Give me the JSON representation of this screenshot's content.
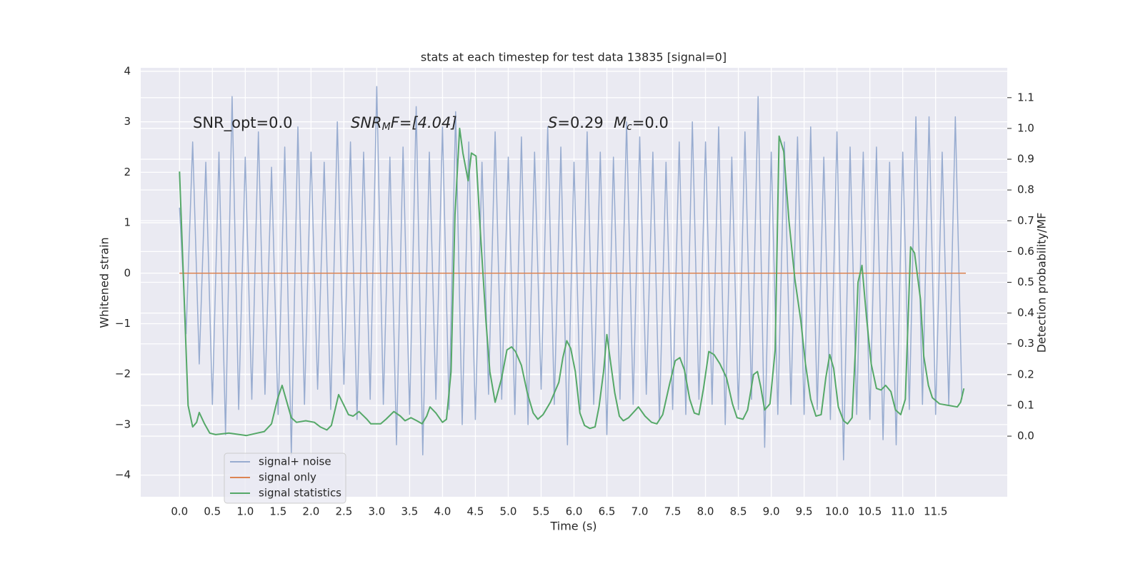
{
  "chart_data": {
    "type": "line",
    "title": "stats at each timestep for test data 13835 [signal=0]",
    "xlabel": "Time (s)",
    "ylabel": "Whitened strain",
    "y2label": "Detection probability/MF",
    "xlim": [
      -0.59,
      12.59
    ],
    "ylim": [
      -4.43,
      4.07
    ],
    "y2lim": [
      -0.197,
      1.197
    ],
    "xticks": [
      {
        "value": 0,
        "label": "0.0"
      },
      0.5,
      {
        "value": 1,
        "label": "1.0"
      },
      1.5,
      {
        "value": 2,
        "label": "2.0"
      },
      2.5,
      {
        "value": 3,
        "label": "3.0"
      },
      3.5,
      {
        "value": 4,
        "label": "4.0"
      },
      4.5,
      {
        "value": 5,
        "label": "5.0"
      },
      5.5,
      {
        "value": 6,
        "label": "6.0"
      },
      6.5,
      {
        "value": 7,
        "label": "7.0"
      },
      7.5,
      {
        "value": 8,
        "label": "8.0"
      },
      8.5,
      {
        "value": 9,
        "label": "9.0"
      },
      9.5,
      {
        "value": 10,
        "label": "10.0"
      },
      10.5,
      {
        "value": 11,
        "label": "11.0"
      },
      11.5
    ],
    "yticks": [
      {
        "value": -4,
        "label": "−4"
      },
      {
        "value": -3,
        "label": "−3"
      },
      {
        "value": -2,
        "label": "−2"
      },
      {
        "value": -1,
        "label": "−1"
      },
      0,
      1,
      2,
      3,
      4
    ],
    "y2ticks": [
      {
        "value": 0,
        "label": "0.0"
      },
      0.1,
      0.2,
      0.3,
      0.4,
      0.5,
      0.6,
      0.7,
      0.8,
      0.9,
      {
        "value": 1,
        "label": "1.0"
      },
      1.1
    ],
    "grid": true,
    "legend": "lower left",
    "annotations": [
      {
        "text": "SNR_opt=0.0"
      },
      {
        "text": "SNR",
        "sub": "M",
        "tail": "F=[4.04]"
      },
      {
        "text": "S",
        "tail": "=0.29"
      },
      {
        "text": "M",
        "sub": "c",
        "tail": "=0.0"
      }
    ],
    "series": [
      {
        "name": "signal+ noise",
        "color": "#98acd0",
        "x": [
          0.0,
          0.1,
          0.2,
          0.3,
          0.4,
          0.5,
          0.6,
          0.7,
          0.8,
          0.9,
          1.0,
          1.1,
          1.2,
          1.3,
          1.4,
          1.5,
          1.6,
          1.7,
          1.8,
          1.9,
          2.0,
          2.1,
          2.2,
          2.3,
          2.4,
          2.5,
          2.6,
          2.7,
          2.8,
          2.9,
          3.0,
          3.1,
          3.2,
          3.3,
          3.4,
          3.5,
          3.6,
          3.7,
          3.8,
          3.9,
          4.0,
          4.1,
          4.2,
          4.3,
          4.4,
          4.5,
          4.6,
          4.7,
          4.8,
          4.9,
          5.0,
          5.1,
          5.2,
          5.3,
          5.4,
          5.5,
          5.6,
          5.7,
          5.8,
          5.9,
          6.0,
          6.1,
          6.2,
          6.3,
          6.4,
          6.5,
          6.6,
          6.7,
          6.8,
          6.9,
          7.0,
          7.1,
          7.2,
          7.3,
          7.4,
          7.5,
          7.6,
          7.7,
          7.8,
          7.9,
          8.0,
          8.1,
          8.2,
          8.3,
          8.4,
          8.5,
          8.6,
          8.7,
          8.8,
          8.9,
          9.0,
          9.1,
          9.2,
          9.3,
          9.4,
          9.5,
          9.6,
          9.7,
          9.8,
          9.9,
          10.0,
          10.1,
          10.2,
          10.3,
          10.4,
          10.5,
          10.6,
          10.7,
          10.8,
          10.9,
          11.0,
          11.1,
          11.2,
          11.3,
          11.4,
          11.5,
          11.6,
          11.7,
          11.8,
          11.9
        ],
        "values": [
          1.3,
          -1.2,
          2.6,
          -1.8,
          2.2,
          -2.6,
          2.4,
          -3.2,
          3.5,
          -2.7,
          2.3,
          -2.5,
          2.8,
          -2.4,
          2.1,
          -2.8,
          2.5,
          -3.6,
          2.9,
          -2.6,
          2.4,
          -2.3,
          2.2,
          -2.7,
          3.0,
          -2.2,
          2.6,
          -2.9,
          2.4,
          -2.5,
          3.7,
          -2.6,
          2.3,
          -3.4,
          2.5,
          -2.8,
          3.3,
          -3.6,
          2.4,
          -2.5,
          2.9,
          -2.7,
          3.2,
          -3.0,
          2.6,
          -2.9,
          2.2,
          -2.4,
          2.8,
          -2.5,
          2.3,
          -2.8,
          2.7,
          -3.0,
          2.4,
          -2.3,
          2.9,
          -2.6,
          2.5,
          -3.4,
          2.2,
          -2.7,
          2.8,
          -2.6,
          2.4,
          -3.2,
          2.3,
          -2.5,
          3.0,
          -2.6,
          2.7,
          -2.4,
          2.4,
          -2.9,
          2.2,
          -2.7,
          2.6,
          -2.8,
          3.0,
          -2.5,
          2.6,
          -2.6,
          2.9,
          -3.0,
          2.3,
          -2.7,
          2.8,
          -2.5,
          3.5,
          -3.45,
          2.4,
          -2.8,
          2.6,
          -2.6,
          2.7,
          -2.8,
          2.9,
          -2.7,
          2.3,
          -2.9,
          2.8,
          -3.7,
          2.5,
          -2.8,
          2.4,
          -2.9,
          2.5,
          -3.3,
          2.2,
          -3.4,
          2.4,
          -2.7,
          3.1,
          -2.6,
          3.1,
          -2.8,
          2.4,
          -2.6,
          3.1,
          -2.5
        ]
      },
      {
        "name": "signal only",
        "color": "#dd8452",
        "x": [
          0,
          11.96
        ],
        "values": [
          0,
          0
        ]
      },
      {
        "name": "signal statistics",
        "color": "#55a868",
        "axis": "y2",
        "x": [
          0.0,
          0.13,
          0.2,
          0.26,
          0.3,
          0.38,
          0.46,
          0.55,
          0.75,
          1.02,
          1.18,
          1.29,
          1.4,
          1.49,
          1.56,
          1.62,
          1.7,
          1.78,
          1.92,
          2.05,
          2.14,
          2.24,
          2.31,
          2.42,
          2.49,
          2.57,
          2.64,
          2.73,
          2.85,
          2.91,
          3.06,
          3.14,
          3.26,
          3.36,
          3.43,
          3.52,
          3.61,
          3.69,
          3.76,
          3.81,
          3.9,
          4.0,
          4.06,
          4.13,
          4.19,
          4.26,
          4.31,
          4.39,
          4.44,
          4.51,
          4.58,
          4.66,
          4.72,
          4.8,
          4.9,
          4.98,
          5.05,
          5.11,
          5.2,
          5.29,
          5.38,
          5.45,
          5.53,
          5.64,
          5.77,
          5.83,
          5.89,
          5.95,
          6.02,
          6.09,
          6.16,
          6.24,
          6.32,
          6.38,
          6.45,
          6.5,
          6.56,
          6.62,
          6.69,
          6.75,
          6.83,
          6.98,
          7.08,
          7.18,
          7.26,
          7.35,
          7.45,
          7.54,
          7.61,
          7.68,
          7.76,
          7.83,
          7.9,
          7.97,
          8.05,
          8.13,
          8.22,
          8.32,
          8.41,
          8.48,
          8.57,
          8.64,
          8.73,
          8.79,
          8.84,
          8.9,
          8.98,
          9.06,
          9.12,
          9.19,
          9.27,
          9.36,
          9.45,
          9.52,
          9.6,
          9.68,
          9.76,
          9.83,
          9.89,
          9.95,
          10.02,
          10.1,
          10.16,
          10.23,
          10.28,
          10.32,
          10.38,
          10.45,
          10.52,
          10.6,
          10.67,
          10.74,
          10.82,
          10.89,
          10.97,
          11.04,
          11.12,
          11.18,
          11.27,
          11.32,
          11.39,
          11.45,
          11.56,
          11.83,
          11.88,
          11.93
        ],
        "values": [
          0.86,
          0.1,
          0.03,
          0.045,
          0.077,
          0.04,
          0.01,
          0.005,
          0.01,
          0.002,
          0.01,
          0.015,
          0.04,
          0.12,
          0.165,
          0.12,
          0.06,
          0.045,
          0.05,
          0.045,
          0.03,
          0.02,
          0.035,
          0.135,
          0.105,
          0.07,
          0.065,
          0.08,
          0.055,
          0.04,
          0.04,
          0.055,
          0.08,
          0.065,
          0.05,
          0.06,
          0.05,
          0.04,
          0.065,
          0.095,
          0.075,
          0.045,
          0.055,
          0.21,
          0.72,
          1.0,
          0.92,
          0.83,
          0.92,
          0.91,
          0.65,
          0.375,
          0.21,
          0.11,
          0.19,
          0.28,
          0.29,
          0.275,
          0.23,
          0.14,
          0.075,
          0.055,
          0.07,
          0.11,
          0.175,
          0.255,
          0.31,
          0.285,
          0.21,
          0.075,
          0.035,
          0.025,
          0.03,
          0.095,
          0.21,
          0.33,
          0.235,
          0.14,
          0.065,
          0.05,
          0.06,
          0.095,
          0.065,
          0.045,
          0.04,
          0.07,
          0.165,
          0.245,
          0.255,
          0.215,
          0.12,
          0.075,
          0.07,
          0.155,
          0.275,
          0.265,
          0.235,
          0.19,
          0.105,
          0.06,
          0.055,
          0.085,
          0.2,
          0.21,
          0.16,
          0.085,
          0.105,
          0.28,
          0.975,
          0.925,
          0.7,
          0.51,
          0.375,
          0.235,
          0.12,
          0.065,
          0.07,
          0.19,
          0.265,
          0.22,
          0.095,
          0.05,
          0.04,
          0.06,
          0.28,
          0.5,
          0.555,
          0.385,
          0.235,
          0.155,
          0.15,
          0.165,
          0.145,
          0.085,
          0.07,
          0.12,
          0.615,
          0.595,
          0.445,
          0.26,
          0.165,
          0.125,
          0.105,
          0.095,
          0.11,
          0.155
        ]
      }
    ]
  }
}
